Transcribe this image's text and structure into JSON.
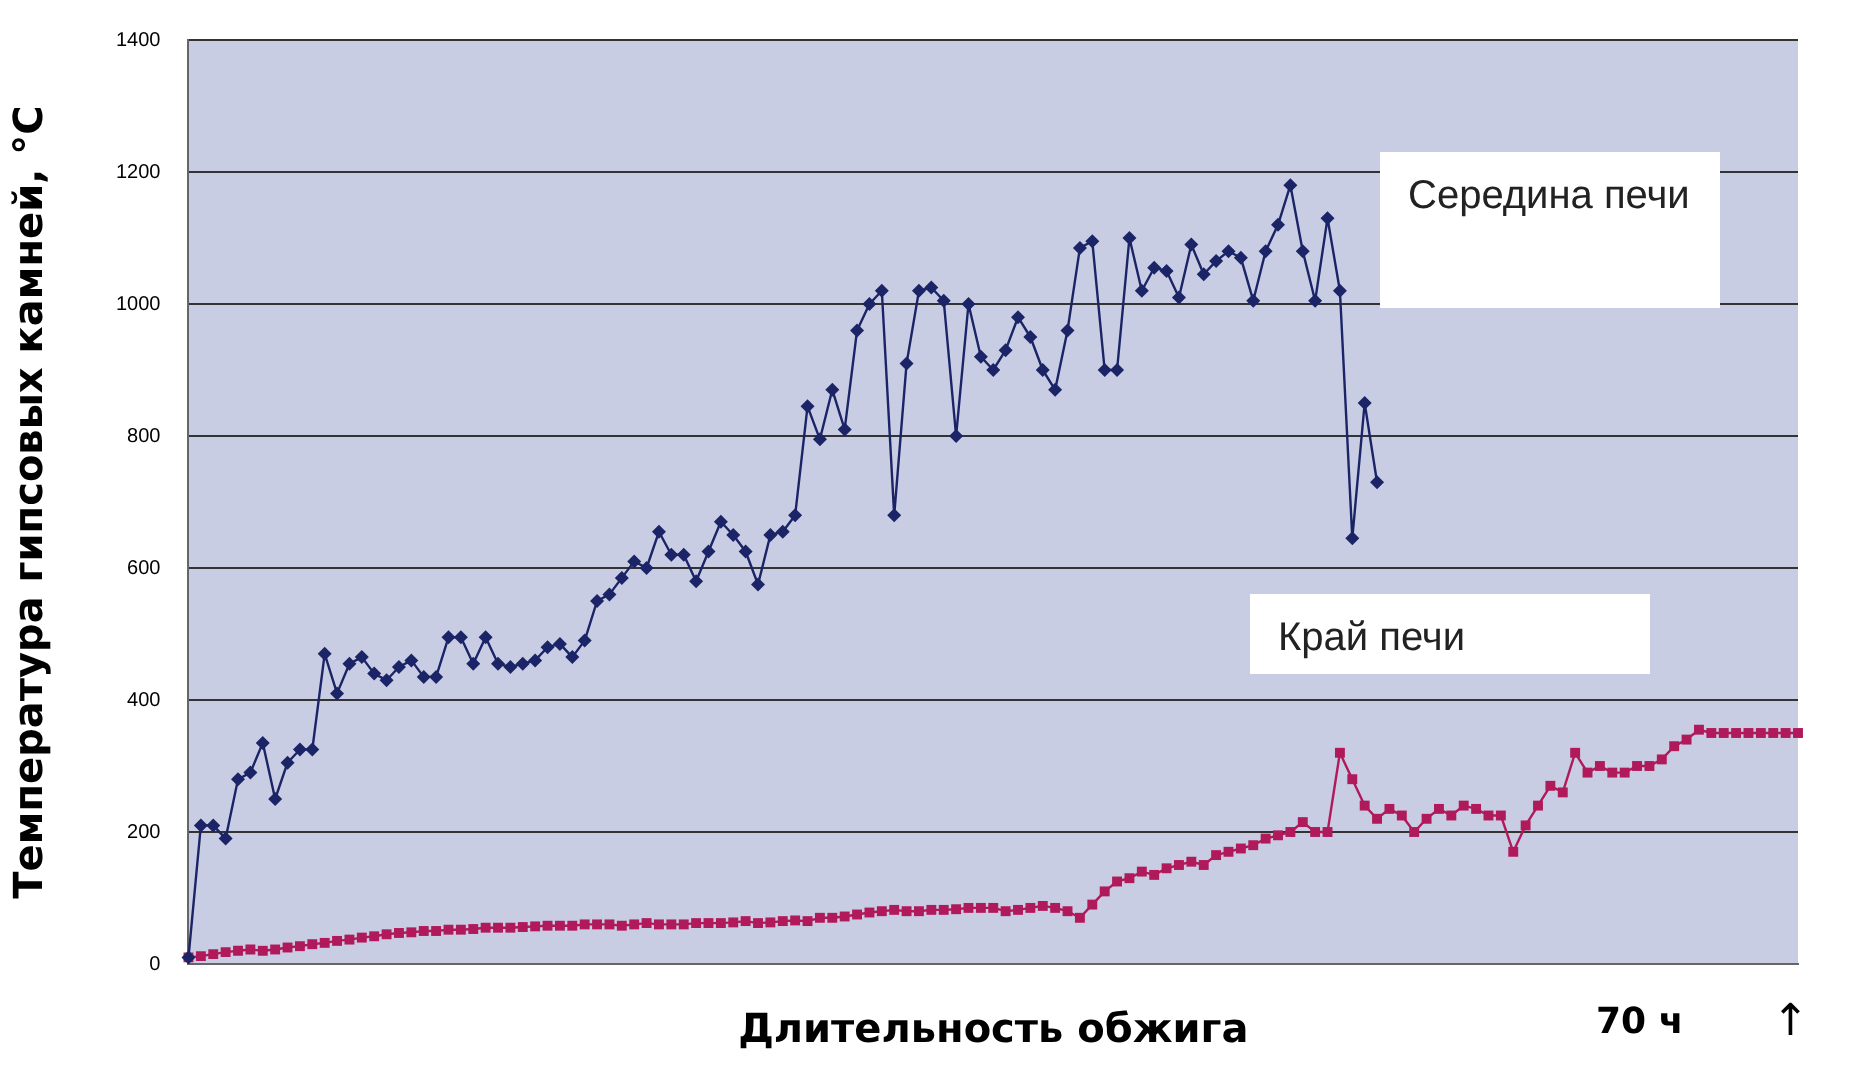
{
  "chart_data": {
    "type": "line",
    "xlabel": "Длительность обжига",
    "ylabel": "Температура гипсовых камней, °C",
    "categories": [
      null,
      null,
      null,
      null,
      null,
      null,
      null,
      null,
      null,
      null,
      null,
      null,
      null,
      null,
      null,
      null,
      null,
      null,
      null,
      null,
      null,
      null,
      null,
      null,
      null,
      null,
      null,
      null,
      null,
      null,
      null,
      null,
      null,
      null,
      null,
      null,
      null,
      null,
      null,
      null,
      null,
      null,
      null,
      null,
      null,
      null,
      null,
      null,
      null,
      null,
      null,
      null,
      null,
      null,
      null,
      null,
      null,
      null,
      null,
      null,
      null,
      null,
      null,
      null,
      null,
      null,
      null,
      null,
      null,
      null,
      null,
      null,
      null,
      null,
      null,
      null,
      null,
      null,
      null,
      null,
      null,
      null,
      null,
      null,
      null,
      null,
      null,
      null,
      null,
      null,
      null,
      null,
      null,
      null,
      null,
      null,
      null,
      null,
      null,
      null,
      null,
      null,
      null,
      null,
      null,
      null,
      null,
      null,
      null,
      null,
      null,
      null,
      null,
      null,
      null,
      null,
      null,
      null,
      null,
      null,
      null,
      null,
      null,
      null,
      null,
      null,
      null,
      null,
      null,
      null,
      null
    ],
    "series": [
      {
        "name": "Середина печи",
        "color": "#1a2466",
        "marker": "diamond",
        "values": [
          10,
          210,
          210,
          190,
          280,
          290,
          335,
          250,
          305,
          325,
          325,
          470,
          410,
          455,
          465,
          440,
          430,
          450,
          460,
          435,
          435,
          495,
          495,
          455,
          495,
          455,
          450,
          455,
          460,
          480,
          485,
          465,
          490,
          550,
          560,
          585,
          610,
          600,
          655,
          620,
          620,
          580,
          625,
          670,
          650,
          625,
          575,
          650,
          655,
          680,
          845,
          795,
          870,
          810,
          960,
          1000,
          1020,
          680,
          910,
          1020,
          1025,
          1005,
          800,
          1000,
          920,
          900,
          930,
          980,
          950,
          900,
          870,
          960,
          1085,
          1095,
          900,
          900,
          1100,
          1020,
          1055,
          1050,
          1010,
          1090,
          1045,
          1065,
          1080,
          1070,
          1005,
          1080,
          1120,
          1180,
          1080,
          1005,
          1130,
          1020,
          645,
          850,
          730,
          null,
          null,
          null,
          null,
          null,
          null,
          null,
          null,
          null,
          null,
          null,
          null,
          null,
          null,
          null,
          null,
          null,
          null,
          null,
          null,
          null,
          null,
          null,
          null,
          null,
          null,
          null,
          null,
          null,
          null,
          null,
          null,
          null,
          null
        ]
      },
      {
        "name": "Край печи",
        "color": "#b0195a",
        "marker": "square",
        "values": [
          10,
          12,
          15,
          18,
          20,
          22,
          20,
          22,
          25,
          27,
          30,
          32,
          35,
          37,
          40,
          42,
          45,
          47,
          48,
          50,
          50,
          52,
          52,
          53,
          55,
          55,
          55,
          56,
          57,
          58,
          58,
          58,
          60,
          60,
          60,
          58,
          60,
          62,
          60,
          60,
          60,
          62,
          62,
          62,
          63,
          65,
          62,
          63,
          65,
          66,
          65,
          70,
          70,
          72,
          75,
          78,
          80,
          82,
          80,
          80,
          82,
          82,
          83,
          85,
          85,
          85,
          80,
          82,
          85,
          88,
          85,
          80,
          70,
          90,
          110,
          125,
          130,
          140,
          135,
          145,
          150,
          155,
          150,
          165,
          170,
          175,
          180,
          190,
          195,
          200,
          215,
          200,
          200,
          320,
          280,
          240,
          220,
          235,
          225,
          200,
          220,
          235,
          225,
          240,
          235,
          225,
          225,
          170,
          210,
          240,
          270,
          260,
          320,
          290,
          300,
          290,
          290,
          300,
          300,
          310,
          330,
          340,
          355,
          350,
          350,
          350,
          350,
          350,
          350,
          350,
          350
        ]
      }
    ],
    "ylim": [
      0,
      1400
    ],
    "yticks": [
      0,
      200,
      400,
      600,
      800,
      1000,
      1200,
      1400
    ],
    "grid": "y",
    "legend": false,
    "tick_labels": "y",
    "line_style": "solid",
    "annotations": [
      "70 ч",
      "↑"
    ]
  }
}
